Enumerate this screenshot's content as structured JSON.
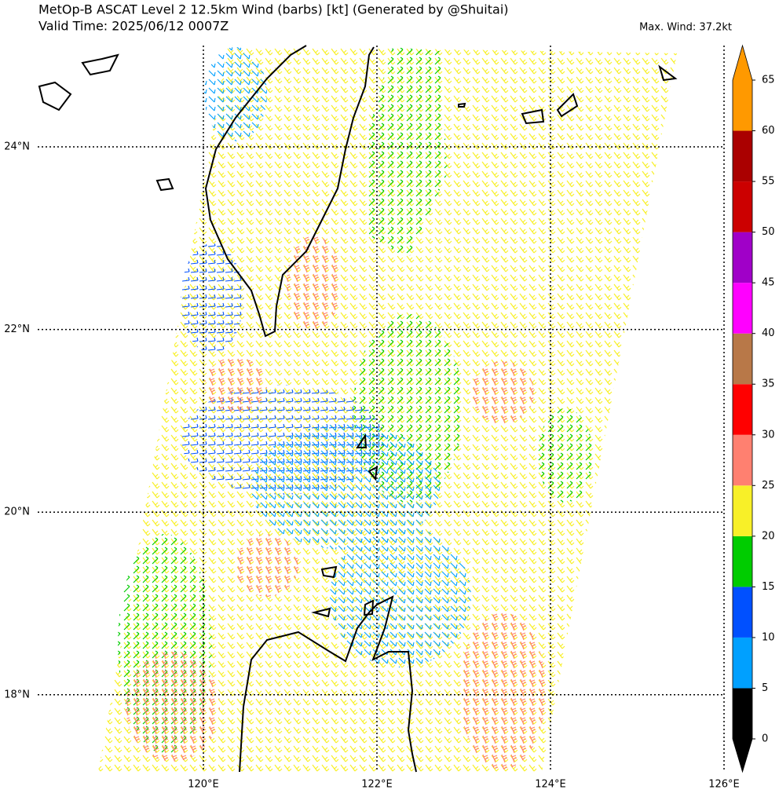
{
  "header": {
    "title": "MetOp-B ASCAT Level 2 12.5km Wind (barbs) [kt] (Generated by @Shuitai)",
    "valid_time": "Valid Time: 2025/06/12 0007Z",
    "max_wind": "Max. Wind: 37.2kt"
  },
  "map": {
    "lat_ticks": [
      {
        "value": 24,
        "label": "24°N"
      },
      {
        "value": 22,
        "label": "22°N"
      },
      {
        "value": 20,
        "label": "20°N"
      },
      {
        "value": 18,
        "label": "18°N"
      }
    ],
    "lon_ticks": [
      {
        "value": 120,
        "label": "120°E"
      },
      {
        "value": 122,
        "label": "122°E"
      },
      {
        "value": 124,
        "label": "124°E"
      },
      {
        "value": 126,
        "label": "126°E"
      }
    ]
  },
  "colorbar": {
    "levels": [
      0,
      5,
      10,
      15,
      20,
      25,
      30,
      35,
      40,
      45,
      50,
      55,
      60,
      65
    ],
    "colors": [
      "#000000",
      "#00a0ff",
      "#0050ff",
      "#00cc00",
      "#f8f028",
      "#ff8070",
      "#ff0000",
      "#b87848",
      "#ff00ff",
      "#a000c8",
      "#cc0000",
      "#aa0000",
      "#ff9900"
    ]
  }
}
